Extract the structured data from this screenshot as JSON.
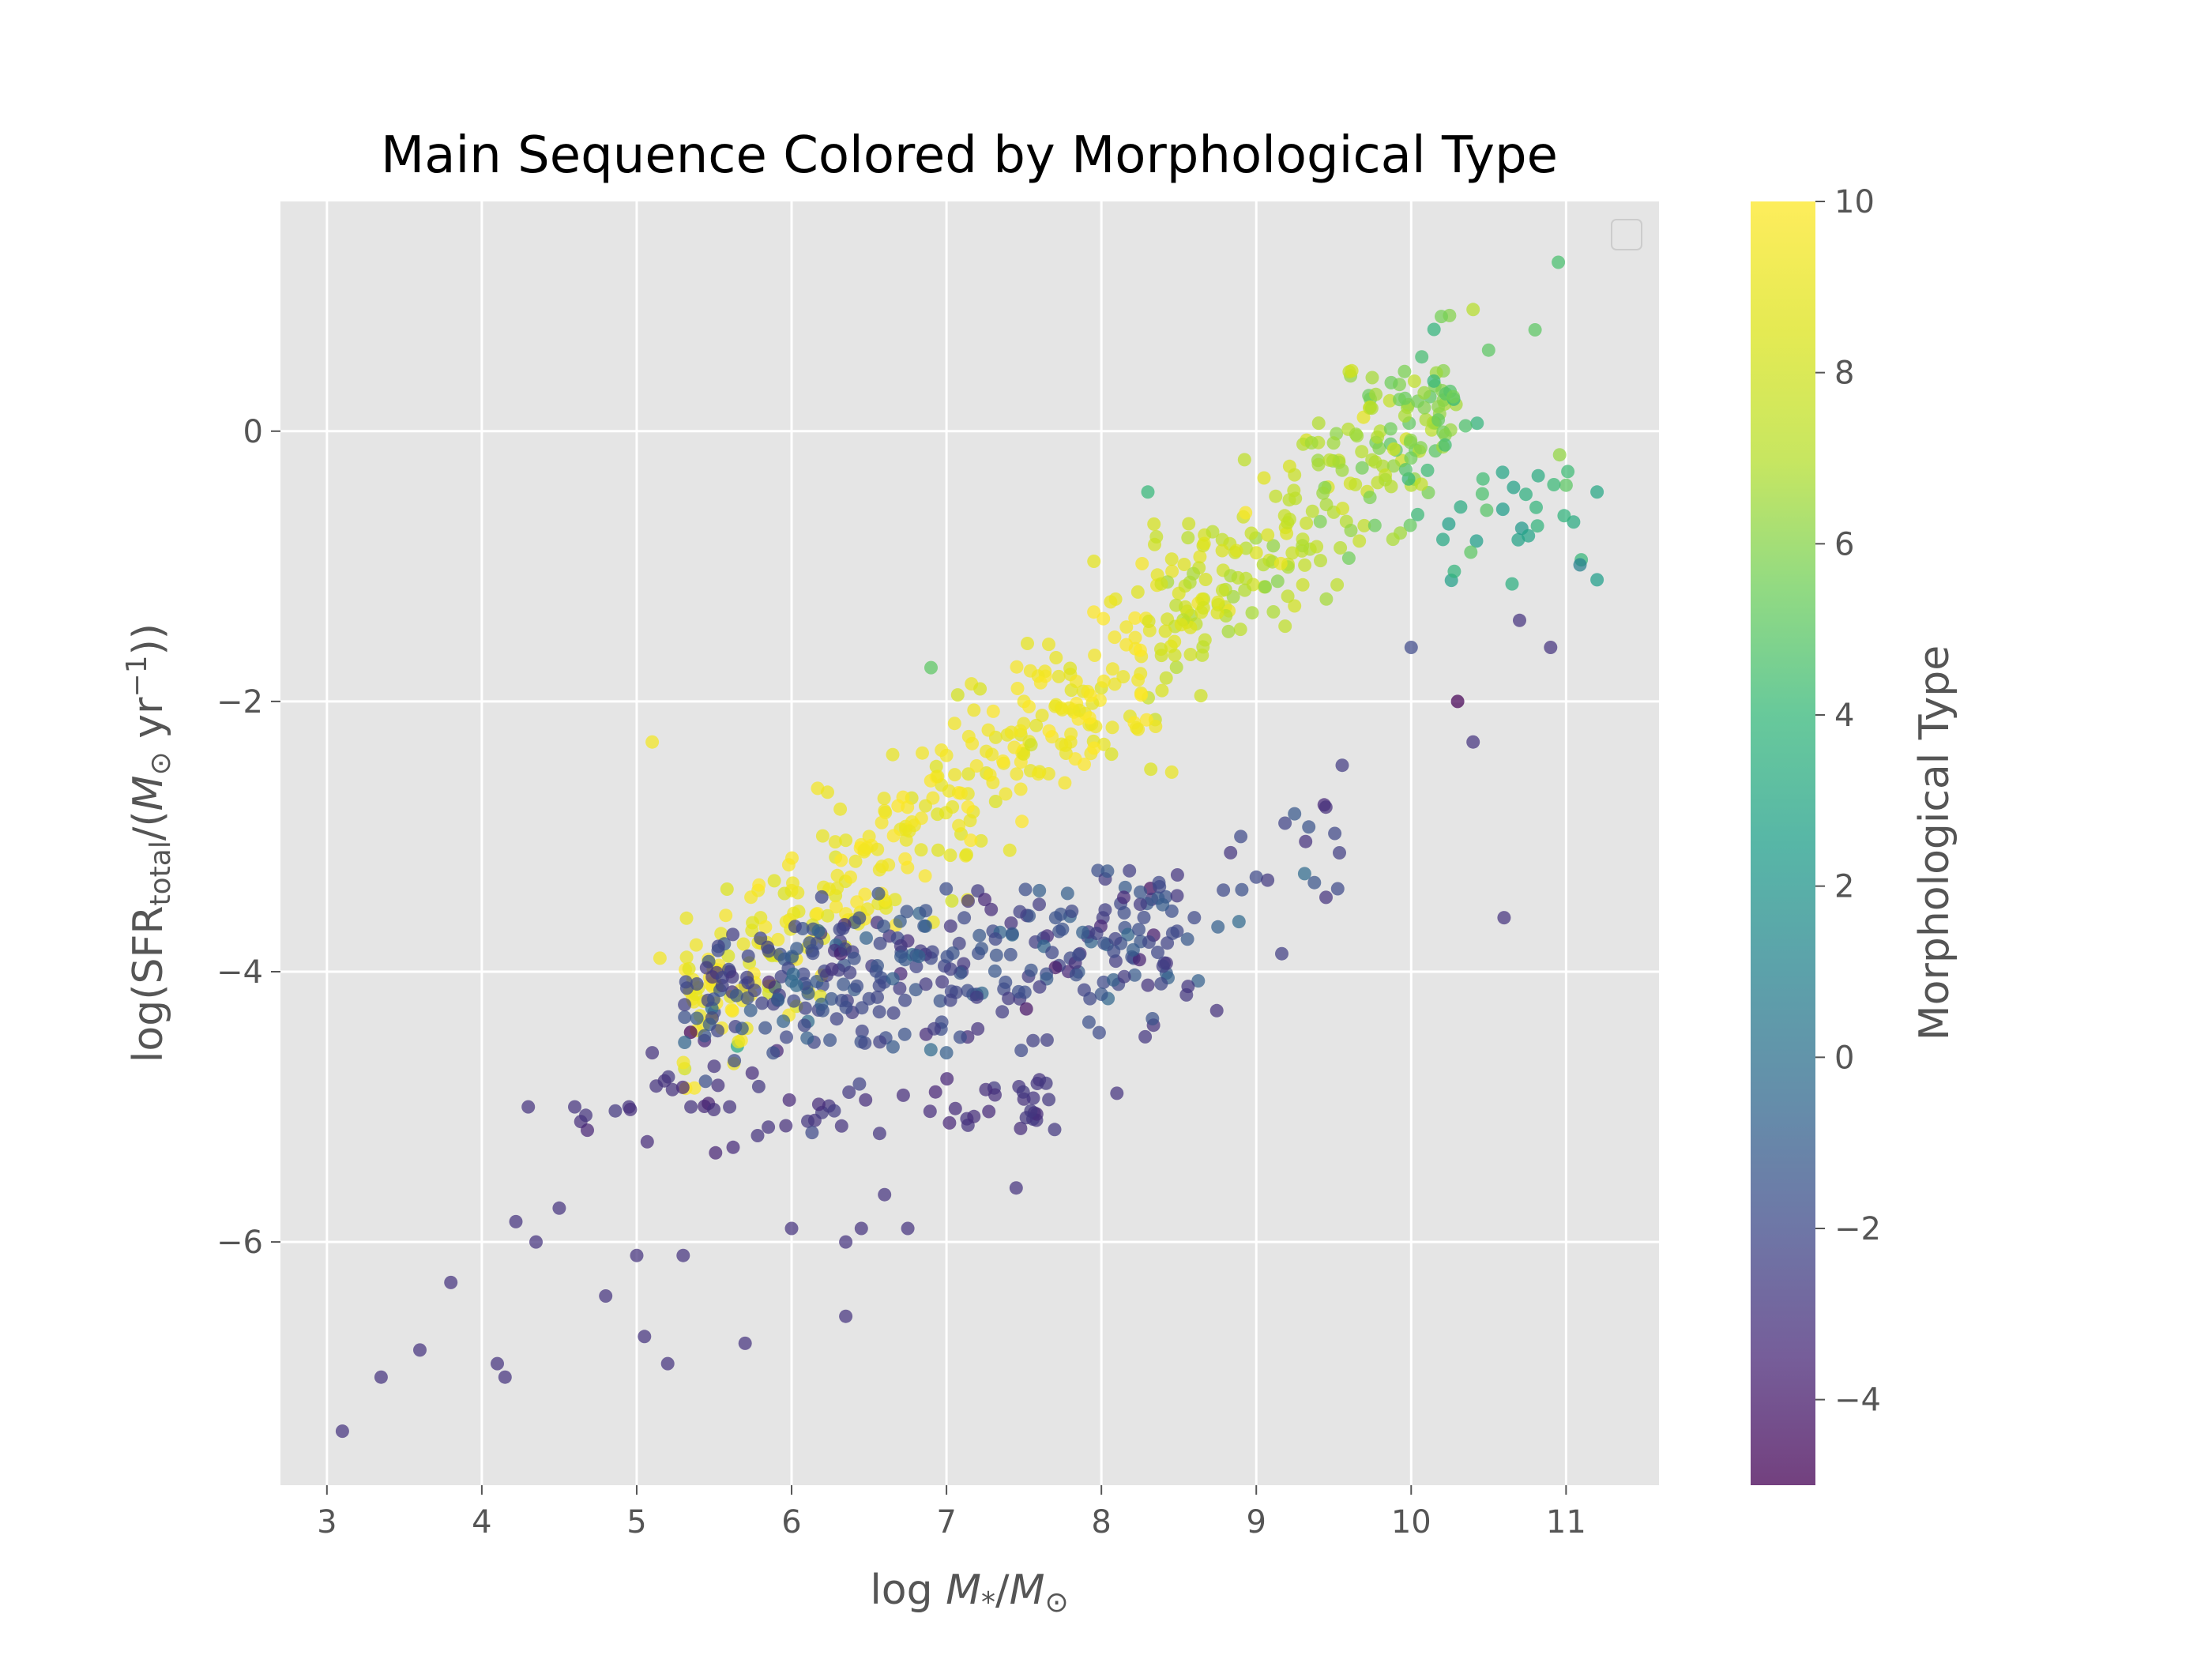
{
  "chart_data": {
    "type": "scatter",
    "title": "Main Sequence Colored by Morphological Type",
    "xlabel": {
      "prefix": "log",
      "var": "M",
      "sub1": "*",
      "slash": "/",
      "var2": "M",
      "sub2": "⊙"
    },
    "ylabel": {
      "p1": "log(SFR",
      "sub": "total",
      "p2": "/(",
      "var": "M",
      "sub2": "⊙",
      "p3": " yr",
      "sup": "−1",
      "p4": "))"
    },
    "xlim": [
      2.7,
      11.6
    ],
    "ylim": [
      -7.8,
      1.7
    ],
    "xticks": [
      3,
      4,
      5,
      6,
      7,
      8,
      9,
      10,
      11
    ],
    "yticks": [
      -6,
      -4,
      -2,
      0
    ],
    "xtick_labels": [
      "3",
      "4",
      "5",
      "6",
      "7",
      "8",
      "9",
      "10",
      "11"
    ],
    "ytick_labels": [
      "−6",
      "−4",
      "−2",
      "0"
    ],
    "grid": true,
    "legend": "top-right, empty",
    "colorbar": {
      "label": "Morphological Type",
      "range": [
        -5,
        10
      ],
      "colormap": "viridis",
      "ticks": [
        -4,
        -2,
        0,
        2,
        4,
        6,
        8,
        10
      ],
      "tick_labels": [
        "−4",
        "−2",
        "0",
        "2",
        "4",
        "6",
        "8",
        "10"
      ]
    },
    "points_sample": [
      [
        3.1,
        -7.4,
        -3
      ],
      [
        3.35,
        -7.0,
        -3
      ],
      [
        3.6,
        -6.8,
        -3
      ],
      [
        3.8,
        -6.3,
        -3
      ],
      [
        4.1,
        -6.9,
        -3
      ],
      [
        4.15,
        -7.0,
        -3
      ],
      [
        4.22,
        -5.85,
        -3
      ],
      [
        4.3,
        -5.0,
        -3
      ],
      [
        4.35,
        -6.0,
        -3
      ],
      [
        4.5,
        -5.75,
        -3
      ],
      [
        4.6,
        -5.0,
        -3
      ],
      [
        4.8,
        -6.4,
        -3
      ],
      [
        4.95,
        -5.0,
        -3
      ],
      [
        5.0,
        -6.1,
        -3
      ],
      [
        5.05,
        -6.7,
        -3
      ],
      [
        5.1,
        -4.6,
        -3
      ],
      [
        5.2,
        -6.9,
        -3
      ],
      [
        5.3,
        -6.1,
        -3
      ],
      [
        5.35,
        -5.0,
        -3
      ],
      [
        5.5,
        -4.7,
        -3
      ],
      [
        5.6,
        -5.0,
        -3
      ],
      [
        5.7,
        -6.75,
        -3
      ],
      [
        5.85,
        -5.15,
        -3
      ],
      [
        6.0,
        -5.9,
        -3
      ],
      [
        6.15,
        -5.1,
        -3
      ],
      [
        6.35,
        -6.0,
        -3
      ],
      [
        6.35,
        -6.55,
        -3
      ],
      [
        6.45,
        -5.9,
        -3
      ],
      [
        6.6,
        -5.65,
        -3
      ],
      [
        6.75,
        -5.9,
        -3
      ],
      [
        5.1,
        -2.3,
        9.5
      ],
      [
        5.15,
        -3.9,
        9.5
      ],
      [
        5.6,
        -4.0,
        -4
      ],
      [
        5.8,
        -3.6,
        9
      ],
      [
        6.0,
        -3.4,
        9.5
      ],
      [
        6.5,
        -3.0,
        9.5
      ],
      [
        6.9,
        -1.75,
        5
      ],
      [
        7.0,
        -2.4,
        9.5
      ],
      [
        7.3,
        -2.6,
        9.5
      ],
      [
        7.5,
        -2.0,
        9.5
      ],
      [
        7.8,
        -1.8,
        9
      ],
      [
        8.0,
        -1.9,
        8.5
      ],
      [
        8.3,
        -0.45,
        4
      ],
      [
        8.5,
        -1.2,
        8.5
      ],
      [
        8.8,
        -1.3,
        8
      ],
      [
        9.0,
        -0.9,
        8.5
      ],
      [
        9.3,
        -0.8,
        7.5
      ],
      [
        9.5,
        -0.6,
        7
      ],
      [
        9.8,
        0.0,
        7
      ],
      [
        10.0,
        -0.4,
        7
      ],
      [
        10.2,
        0.3,
        6
      ],
      [
        10.4,
        0.9,
        7
      ],
      [
        10.5,
        0.6,
        5
      ],
      [
        10.8,
        0.75,
        5
      ],
      [
        10.95,
        1.25,
        4.5
      ],
      [
        11.0,
        -0.4,
        5
      ],
      [
        11.2,
        -0.45,
        3
      ],
      [
        11.2,
        -1.1,
        2.5
      ],
      [
        10.0,
        -1.6,
        -2
      ],
      [
        10.3,
        -2.0,
        -5
      ],
      [
        10.4,
        -2.3,
        -3
      ],
      [
        10.6,
        -3.6,
        -3
      ],
      [
        10.9,
        -1.6,
        -3
      ],
      [
        10.7,
        -1.4,
        -3
      ],
      [
        9.45,
        -3.45,
        -3
      ],
      [
        9.0,
        -3.3,
        -2
      ],
      [
        8.9,
        -3.0,
        -2
      ],
      [
        8.6,
        -3.6,
        -2
      ],
      [
        8.3,
        -4.1,
        -3
      ],
      [
        8.1,
        -4.9,
        -3
      ],
      [
        7.6,
        -4.8,
        -3
      ],
      [
        7.45,
        -5.6,
        -3
      ],
      [
        7.0,
        -4.6,
        -1
      ],
      [
        6.9,
        -3.9,
        -2
      ],
      [
        7.1,
        -4.0,
        -2.5
      ],
      [
        7.3,
        -3.7,
        -2
      ],
      [
        7.6,
        -3.4,
        -1
      ],
      [
        7.8,
        -3.9,
        -2
      ],
      [
        6.5,
        -4.2,
        -2
      ],
      [
        6.2,
        -4.1,
        -2
      ],
      [
        6.0,
        -3.9,
        -2
      ],
      [
        5.7,
        -4.1,
        -2
      ],
      [
        5.5,
        -4.3,
        -2
      ],
      [
        5.65,
        -4.55,
        3
      ]
    ]
  }
}
